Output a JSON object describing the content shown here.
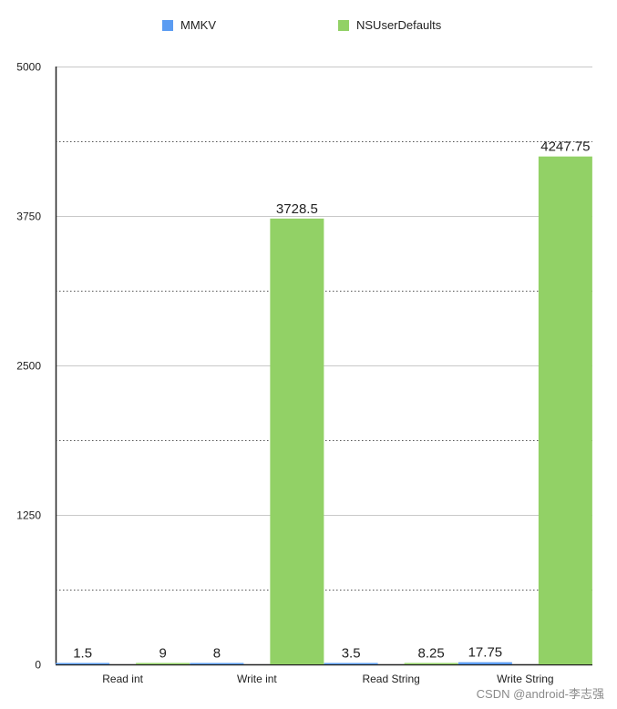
{
  "chart_data": {
    "type": "bar",
    "categories": [
      "Read int",
      "Write int",
      "Read String",
      "Write String"
    ],
    "series": [
      {
        "name": "MMKV",
        "values": [
          1.5,
          8,
          3.5,
          17.75
        ],
        "labels": [
          "1.5",
          "8",
          "3.5",
          "17.75"
        ],
        "color": "#5b9cf2"
      },
      {
        "name": "NSUserDefaults",
        "values": [
          9,
          3728.5,
          8.25,
          4247.75
        ],
        "labels": [
          "9",
          "3728.5",
          "8.25",
          "4247.75"
        ],
        "color": "#92d166"
      }
    ],
    "yticks": [
      0,
      1250,
      2500,
      3750,
      5000
    ],
    "ytick_labels": [
      "0",
      "1250",
      "2500",
      "3750",
      "5000"
    ],
    "ylim": [
      0,
      5000
    ],
    "minor_gridlines": [
      625,
      1875,
      3125,
      4375
    ],
    "grid": true,
    "legend_position": "top-center"
  },
  "watermark": "CSDN @android-李志强"
}
